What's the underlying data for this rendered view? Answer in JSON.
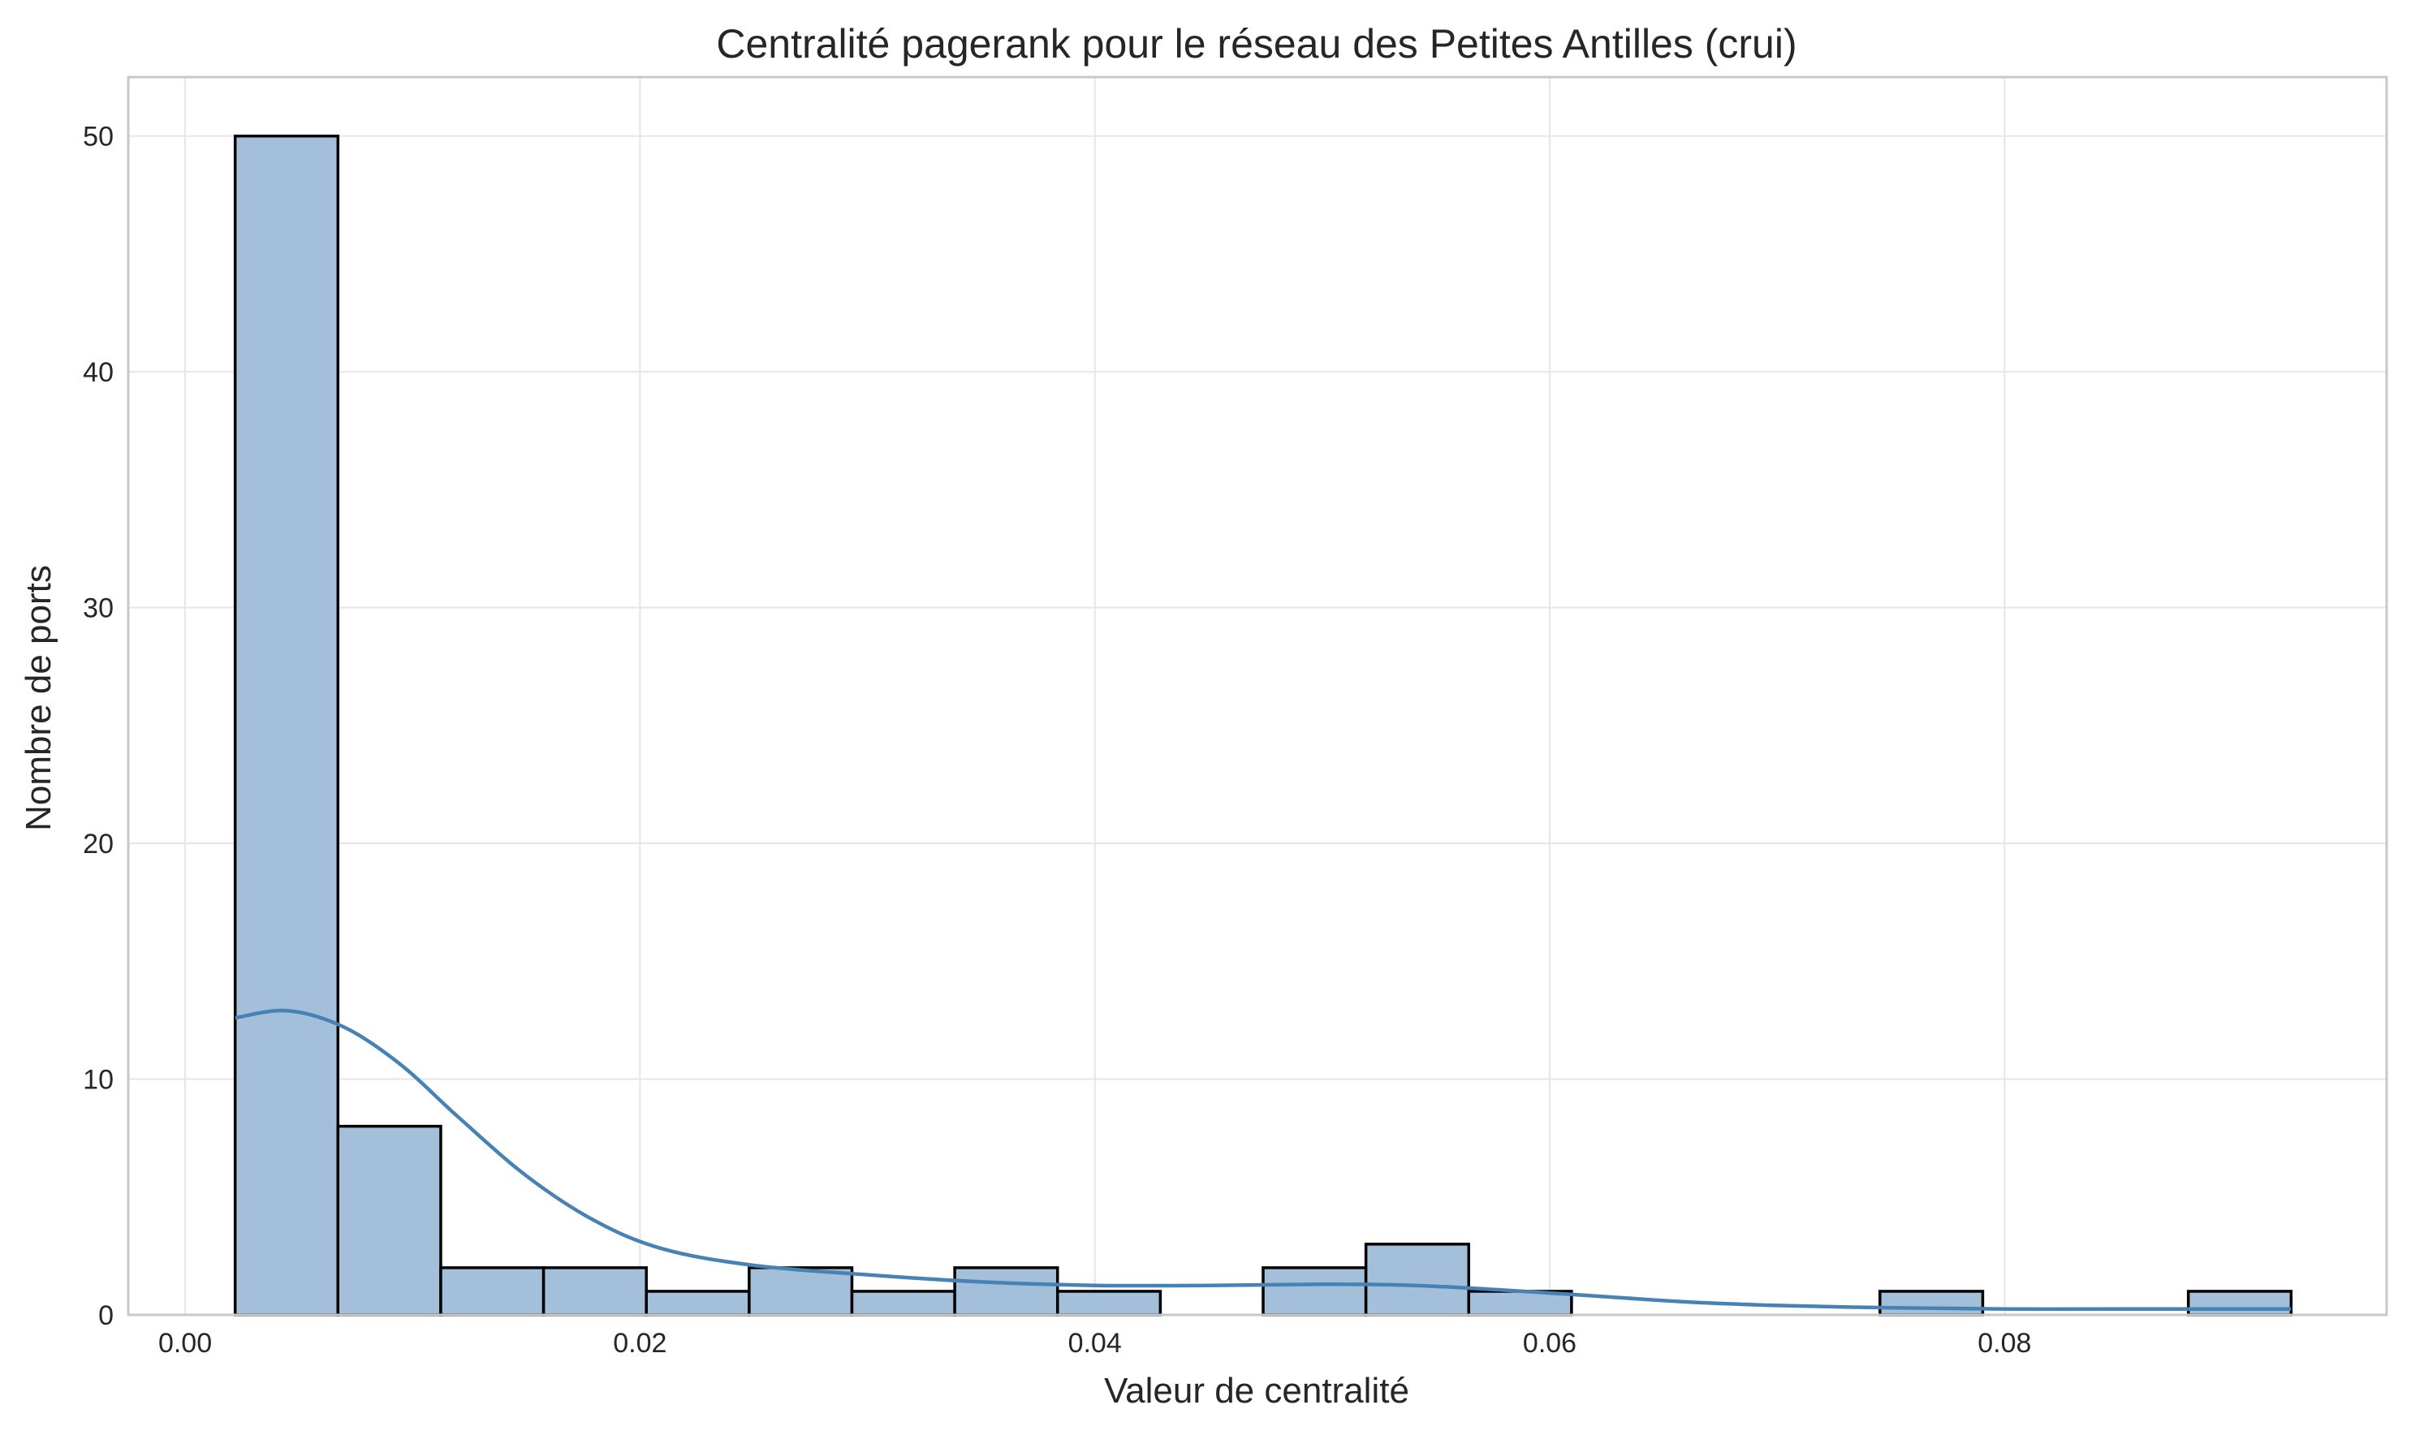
{
  "chart_data": {
    "type": "bar",
    "title": "Centralité pagerank pour le réseau des Petites Antilles (crui)",
    "xlabel": "Valeur de centralité",
    "ylabel": "Nombre de ports",
    "xlim": [
      -0.0025,
      0.0968
    ],
    "ylim": [
      0,
      52.5
    ],
    "xticks": [
      0.0,
      0.02,
      0.04,
      0.06,
      0.08
    ],
    "xtick_labels": [
      "0.00",
      "0.02",
      "0.04",
      "0.06",
      "0.08"
    ],
    "yticks": [
      0,
      10,
      20,
      30,
      40,
      50
    ],
    "ytick_labels": [
      "0",
      "10",
      "20",
      "30",
      "40",
      "50"
    ],
    "grid": true,
    "legend": "none",
    "bin_edges": [
      0.0022,
      0.00672,
      0.01124,
      0.01576,
      0.02028,
      0.0248,
      0.02932,
      0.03384,
      0.03836,
      0.04288,
      0.0474,
      0.05192,
      0.05644,
      0.06096,
      0.06548,
      0.07,
      0.07452,
      0.07904,
      0.08356,
      0.08808,
      0.0926
    ],
    "counts": [
      50,
      8,
      2,
      2,
      1,
      2,
      1,
      2,
      1,
      0,
      2,
      3,
      1,
      0,
      0,
      0,
      1,
      0,
      0,
      1
    ],
    "kde": {
      "x": [
        0.0022,
        0.0045,
        0.007,
        0.0095,
        0.012,
        0.015,
        0.018,
        0.021,
        0.025,
        0.03,
        0.035,
        0.04,
        0.045,
        0.05,
        0.054,
        0.058,
        0.062,
        0.066,
        0.07,
        0.075,
        0.08,
        0.085,
        0.0926
      ],
      "y": [
        12.6,
        12.9,
        12.2,
        10.6,
        8.4,
        5.9,
        4.0,
        2.8,
        2.1,
        1.7,
        1.4,
        1.25,
        1.25,
        1.3,
        1.25,
        1.05,
        0.8,
        0.55,
        0.4,
        0.3,
        0.25,
        0.25,
        0.25
      ]
    },
    "colors": {
      "bar_fill": "#a3bfd9",
      "bar_edge": "#000000",
      "kde_line": "#4682b4",
      "grid": "#e6e6e6",
      "text": "#262626"
    }
  }
}
